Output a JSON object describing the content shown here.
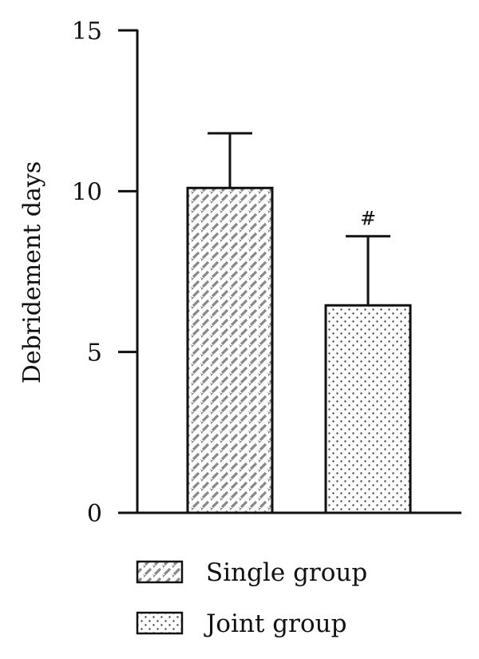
{
  "chart_data": {
    "type": "bar",
    "title": "",
    "xlabel": "",
    "ylabel": "Debridement days",
    "ylim": [
      0,
      15
    ],
    "yticks": [
      0,
      5,
      10,
      15
    ],
    "grid": false,
    "legend_position": "bottom",
    "categories": [
      "Single group",
      "Joint group"
    ],
    "values": [
      10.1,
      6.45
    ],
    "error_upper": [
      11.8,
      8.6
    ],
    "annotations": [
      "",
      "#"
    ],
    "patterns": [
      "diagonal-dash",
      "dots"
    ],
    "colors": {
      "hatch_fill": "#888888",
      "dot_fill": "#444444",
      "axis": "#111111",
      "background": "#ffffff"
    }
  }
}
